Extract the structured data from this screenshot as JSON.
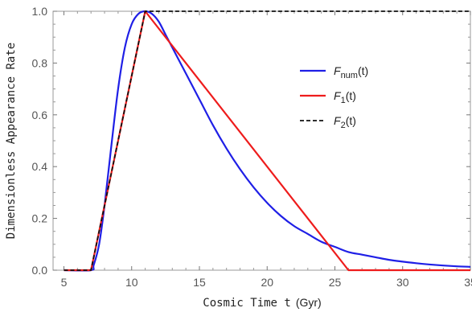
{
  "chart_data": {
    "type": "line",
    "xlabel": "Cosmic Time t",
    "xlabel_unit": "(Gyr)",
    "ylabel": "Dimensionless Appearance Rate",
    "xlim": [
      4.2,
      35
    ],
    "ylim": [
      0,
      1
    ],
    "x_ticks": [
      5,
      10,
      15,
      20,
      25,
      30,
      35
    ],
    "y_ticks": [
      0.0,
      0.2,
      0.4,
      0.6,
      0.8,
      1.0
    ],
    "y_tick_labels": [
      "0.0",
      "0.2",
      "0.4",
      "0.6",
      "0.8",
      "1.0"
    ],
    "grid": false,
    "legend_position": "upper-right",
    "series": [
      {
        "key": "F_num",
        "legend_main": "F",
        "legend_sub": "num",
        "legend_tail": "(t)",
        "color": "#1f1fe6",
        "dash": "solid",
        "x": [
          5,
          7,
          7.2,
          7.6,
          8,
          8.5,
          9,
          9.5,
          10,
          10.5,
          11,
          11.5,
          12,
          12.5,
          13,
          14,
          15,
          16,
          17,
          18,
          19,
          20,
          21,
          22,
          23,
          24,
          25,
          26,
          27,
          28,
          29,
          30,
          31,
          32,
          33,
          34,
          35
        ],
        "y": [
          0,
          0,
          0.02,
          0.1,
          0.25,
          0.48,
          0.7,
          0.86,
          0.95,
          0.99,
          1.0,
          0.99,
          0.96,
          0.91,
          0.86,
          0.76,
          0.66,
          0.56,
          0.47,
          0.39,
          0.32,
          0.26,
          0.21,
          0.17,
          0.14,
          0.11,
          0.09,
          0.07,
          0.06,
          0.05,
          0.04,
          0.033,
          0.027,
          0.022,
          0.018,
          0.015,
          0.013
        ]
      },
      {
        "key": "F_1",
        "legend_main": "F",
        "legend_sub": "1",
        "legend_tail": "(t)",
        "color": "#ee1c1c",
        "dash": "solid",
        "x": [
          5,
          7,
          11,
          26,
          35
        ],
        "y": [
          0,
          0,
          1.0,
          0,
          0
        ]
      },
      {
        "key": "F_2",
        "legend_main": "F",
        "legend_sub": "2",
        "legend_tail": "(t)",
        "color": "#111111",
        "dash": "dashed",
        "x": [
          5,
          7,
          11,
          35
        ],
        "y": [
          0,
          0,
          1.0,
          1.0
        ]
      }
    ]
  }
}
